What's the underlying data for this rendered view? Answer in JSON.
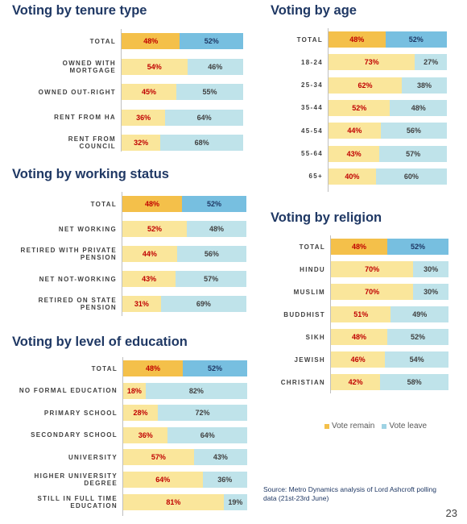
{
  "chart_data": [
    {
      "type": "bar",
      "stacked": true,
      "orientation": "horizontal",
      "title": "Voting by tenure type",
      "categories": [
        "TOTAL",
        "OWNED WITH\nMORTGAGE",
        "OWNED OUT-RIGHT",
        "RENT FROM HA",
        "RENT FROM\nCOUNCIL"
      ],
      "series": [
        {
          "name": "Vote remain",
          "values": [
            48,
            54,
            45,
            36,
            32
          ]
        },
        {
          "name": "Vote leave",
          "values": [
            52,
            46,
            55,
            64,
            68
          ]
        }
      ],
      "xlim": [
        0,
        100
      ]
    },
    {
      "type": "bar",
      "stacked": true,
      "orientation": "horizontal",
      "title": "Voting by working status",
      "categories": [
        "TOTAL",
        "NET WORKING",
        "RETIRED WITH PRIVATE\nPENSION",
        "NET NOT-WORKING",
        "RETIRED ON STATE\nPENSION"
      ],
      "series": [
        {
          "name": "Vote remain",
          "values": [
            48,
            52,
            44,
            43,
            31
          ]
        },
        {
          "name": "Vote leave",
          "values": [
            52,
            48,
            56,
            57,
            69
          ]
        }
      ],
      "xlim": [
        0,
        100
      ]
    },
    {
      "type": "bar",
      "stacked": true,
      "orientation": "horizontal",
      "title": "Voting by level of education",
      "categories": [
        "TOTAL",
        "NO FORMAL EDUCATION",
        "PRIMARY SCHOOL",
        "SECONDARY SCHOOL",
        "UNIVERSITY",
        "HIGHER UNIVERSITY\nDEGREE",
        "STILL IN FULL TIME\nEDUCATION"
      ],
      "series": [
        {
          "name": "Vote remain",
          "values": [
            48,
            18,
            28,
            36,
            57,
            64,
            81
          ]
        },
        {
          "name": "Vote leave",
          "values": [
            52,
            82,
            72,
            64,
            43,
            36,
            19
          ]
        }
      ],
      "xlim": [
        0,
        100
      ]
    },
    {
      "type": "bar",
      "stacked": true,
      "orientation": "horizontal",
      "title": "Voting by age",
      "categories": [
        "TOTAL",
        "18-24",
        "25-34",
        "35-44",
        "45-54",
        "55-64",
        "65+"
      ],
      "series": [
        {
          "name": "Vote remain",
          "values": [
            48,
            73,
            62,
            52,
            44,
            43,
            40
          ]
        },
        {
          "name": "Vote leave",
          "values": [
            52,
            27,
            38,
            48,
            56,
            57,
            60
          ]
        }
      ],
      "xlim": [
        0,
        100
      ]
    },
    {
      "type": "bar",
      "stacked": true,
      "orientation": "horizontal",
      "title": "Voting by religion",
      "categories": [
        "TOTAL",
        "HINDU",
        "MUSLIM",
        "BUDDHIST",
        "SIKH",
        "JEWISH",
        "CHRISTIAN"
      ],
      "series": [
        {
          "name": "Vote remain",
          "values": [
            48,
            70,
            70,
            51,
            48,
            46,
            42
          ]
        },
        {
          "name": "Vote leave",
          "values": [
            52,
            30,
            30,
            49,
            52,
            54,
            58
          ]
        }
      ],
      "xlim": [
        0,
        100
      ]
    }
  ],
  "legend": [
    {
      "label": "Vote remain",
      "color": "#f4c04a"
    },
    {
      "label": "Vote leave",
      "color": "#9fd3e4"
    }
  ],
  "colors": {
    "remain_total": "#f4c04a",
    "remain": "#fae69b",
    "leave_total": "#77bfe0",
    "leave": "#bfe3ea",
    "remain_text": "#c00000",
    "title": "#1f3864"
  },
  "source": "Source: Metro Dynamics analysis of Lord Ashcroft polling data (21st-23rd June)",
  "page_number": "23"
}
